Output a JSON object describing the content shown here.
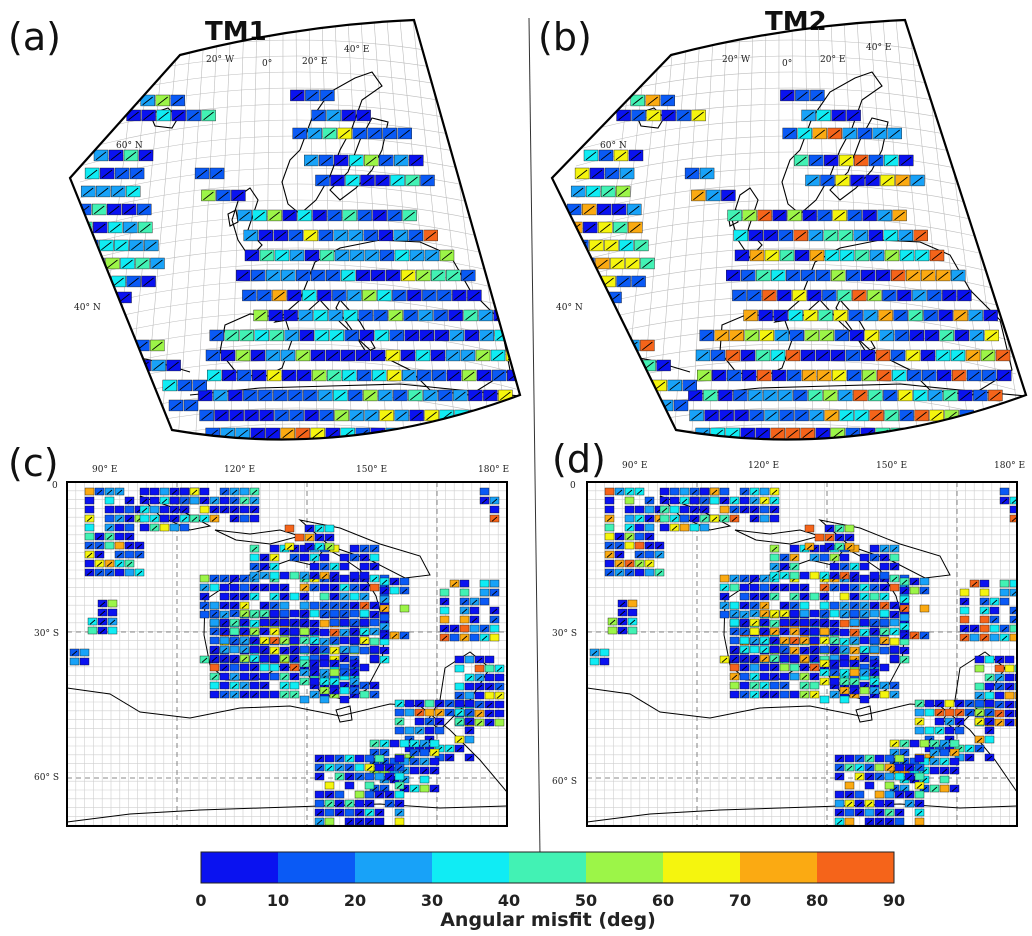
{
  "panels": {
    "a": {
      "letter": "(a)",
      "title": "TM1",
      "lon_labels": [
        "20° W",
        "0°",
        "20° E",
        "40° E"
      ],
      "lat_labels": [
        "60° N",
        "40° N"
      ]
    },
    "b": {
      "letter": "(b)",
      "title": "TM2",
      "lon_labels": [
        "20° W",
        "0°",
        "20° E",
        "40° E"
      ],
      "lat_labels": [
        "60° N",
        "40° N"
      ]
    },
    "c": {
      "letter": "(c)",
      "lon_labels": [
        "90° E",
        "120° E",
        "150° E",
        "180° E"
      ],
      "lat_labels": [
        "0",
        "30° S",
        "60° S"
      ]
    },
    "d": {
      "letter": "(d)",
      "lon_labels": [
        "90° E",
        "120° E",
        "150° E",
        "180° E"
      ],
      "lat_labels": [
        "0",
        "30° S",
        "60° S"
      ]
    }
  },
  "colorbar": {
    "title_prefix": "Angular ",
    "title_bold": "misfit",
    "title_suffix": " (deg)",
    "ticks": [
      "0",
      "10",
      "20",
      "30",
      "40",
      "50",
      "60",
      "70",
      "80",
      "90"
    ],
    "range": [
      0,
      90
    ],
    "colors": [
      "#0a12f0",
      "#0a5af5",
      "#18a2f8",
      "#10ecf4",
      "#42f2b4",
      "#9cf548",
      "#f5f50e",
      "#fbaa12",
      "#f5641a"
    ]
  },
  "map_type": "gridded angular misfit map with grid-cell markers"
}
